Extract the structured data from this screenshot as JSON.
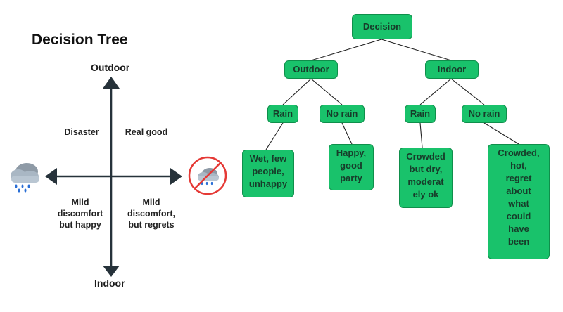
{
  "title": "Decision Tree",
  "axes": {
    "top": "Outdoor",
    "bottom": "Indoor"
  },
  "quadrants": {
    "top_left": "Disaster",
    "top_right": "Real good",
    "bottom_left": "Mild\ndiscomfort\nbut happy",
    "bottom_right": "Mild\ndiscomfort,\nbut regrets"
  },
  "icons": {
    "left": "rain-cloud-icon",
    "right": "no-rain-icon"
  },
  "colors": {
    "node_fill": "#19c26b",
    "node_text": "#173c2a",
    "axis": "#26323a",
    "no_sign": "#e53935"
  },
  "tree": {
    "root": "Decision",
    "level1": [
      "Outdoor",
      "Indoor"
    ],
    "level2": [
      "Rain",
      "No rain",
      "Rain",
      "No rain"
    ],
    "leaves": [
      "Wet, few\npeople,\nunhappy",
      "Happy,\ngood\nparty",
      "Crowded\nbut dry,\nmoderat\nely ok",
      "Crowded,\nhot,\nregret\nabout\nwhat\ncould\nhave\nbeen"
    ]
  }
}
